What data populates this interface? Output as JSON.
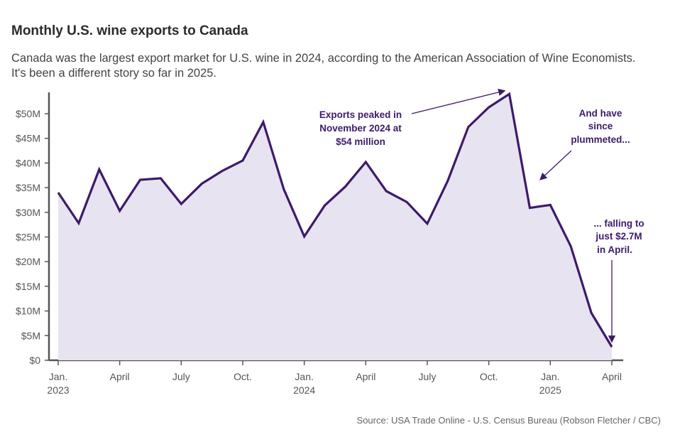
{
  "chart_data": {
    "type": "area",
    "title": "Monthly U.S. wine exports to Canada",
    "subtitle": "Canada was the largest export market for U.S. wine in 2024, according to the American Association of Wine Economists. It's been a different story so far in 2025.",
    "source": "Source: USA Trade Online - U.S. Census Bureau (Robson Fletcher / CBC)",
    "xlabel": "",
    "ylabel": "",
    "ylim": [
      0,
      55
    ],
    "y_ticks": [
      {
        "value": 0,
        "label": "$0"
      },
      {
        "value": 5,
        "label": "$5M"
      },
      {
        "value": 10,
        "label": "$10M"
      },
      {
        "value": 15,
        "label": "$15M"
      },
      {
        "value": 20,
        "label": "$20M"
      },
      {
        "value": 25,
        "label": "$25M"
      },
      {
        "value": 30,
        "label": "$30M"
      },
      {
        "value": 35,
        "label": "$35M"
      },
      {
        "value": 40,
        "label": "$40M"
      },
      {
        "value": 45,
        "label": "$45M"
      },
      {
        "value": 50,
        "label": "$50M"
      }
    ],
    "x_ticks": [
      {
        "index": 0,
        "line1": "Jan.",
        "line2": "2023"
      },
      {
        "index": 3,
        "line1": "April",
        "line2": ""
      },
      {
        "index": 6,
        "line1": "July",
        "line2": ""
      },
      {
        "index": 9,
        "line1": "Oct.",
        "line2": ""
      },
      {
        "index": 12,
        "line1": "Jan.",
        "line2": "2024"
      },
      {
        "index": 15,
        "line1": "April",
        "line2": ""
      },
      {
        "index": 18,
        "line1": "July",
        "line2": ""
      },
      {
        "index": 21,
        "line1": "Oct.",
        "line2": ""
      },
      {
        "index": 24,
        "line1": "Jan.",
        "line2": "2025"
      },
      {
        "index": 27,
        "line1": "April",
        "line2": ""
      }
    ],
    "series": [
      {
        "name": "Monthly U.S. wine exports to Canada ($M)",
        "color": "#3d1a6b",
        "fill": "#e8e3f0",
        "x": [
          "Jan. 2023",
          "Feb. 2023",
          "Mar. 2023",
          "Apr. 2023",
          "May 2023",
          "Jun. 2023",
          "Jul. 2023",
          "Aug. 2023",
          "Sep. 2023",
          "Oct. 2023",
          "Nov. 2023",
          "Dec. 2023",
          "Jan. 2024",
          "Feb. 2024",
          "Mar. 2024",
          "Apr. 2024",
          "May 2024",
          "Jun. 2024",
          "Jul. 2024",
          "Aug. 2024",
          "Sep. 2024",
          "Oct. 2024",
          "Nov. 2024",
          "Dec. 2024",
          "Jan. 2025",
          "Feb. 2025",
          "Mar. 2025",
          "Apr. 2025"
        ],
        "values": [
          34,
          27.8,
          38.7,
          30.3,
          36.6,
          36.9,
          31.7,
          35.8,
          38.4,
          40.5,
          48.3,
          34.7,
          25.1,
          31.4,
          35.2,
          40.2,
          34.3,
          32.1,
          27.7,
          36.4,
          47.3,
          51.3,
          54.0,
          30.9,
          31.5,
          23.1,
          9.6,
          2.7
        ]
      }
    ],
    "annotations": [
      {
        "lines": [
          "Exports peaked in",
          "November 2024 at",
          "$54 million"
        ]
      },
      {
        "lines": [
          "And have",
          "since",
          "plummeted..."
        ]
      },
      {
        "lines": [
          "... falling to",
          "just $2.7M",
          "in April."
        ]
      }
    ]
  }
}
